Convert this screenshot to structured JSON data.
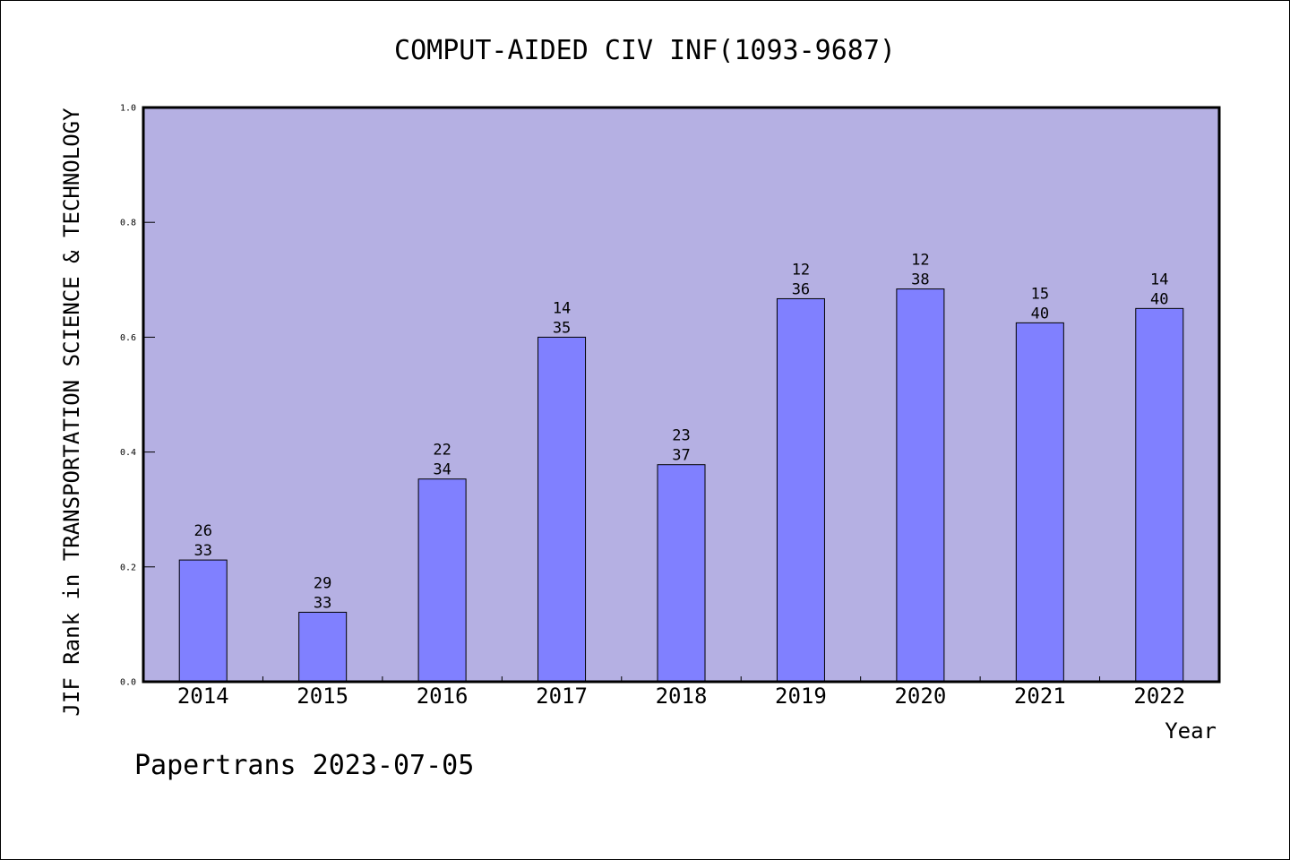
{
  "chart_data": {
    "type": "bar",
    "title": "COMPUT-AIDED CIV INF(1093-9687)",
    "xlabel": "Year",
    "ylabel": "JIF Rank in TRANSPORTATION SCIENCE & TECHNOLOGY",
    "ylim": [
      0,
      1.0
    ],
    "yticks": [
      "0.0",
      "0.2",
      "0.4",
      "0.6",
      "0.8",
      "1.0"
    ],
    "grid": false,
    "categories": [
      "2014",
      "2015",
      "2016",
      "2017",
      "2018",
      "2019",
      "2020",
      "2021",
      "2022"
    ],
    "values": [
      0.212,
      0.121,
      0.353,
      0.6,
      0.378,
      0.667,
      0.684,
      0.625,
      0.65
    ],
    "ranks": [
      "26",
      "29",
      "22",
      "14",
      "23",
      "12",
      "12",
      "15",
      "14"
    ],
    "totals": [
      "33",
      "33",
      "34",
      "35",
      "37",
      "36",
      "38",
      "40",
      "40"
    ],
    "footer": "Papertrans 2023-07-05",
    "colors": {
      "plot_bg": "#b5b0e3",
      "bar": "#8080ff",
      "axis": "#000000"
    }
  }
}
